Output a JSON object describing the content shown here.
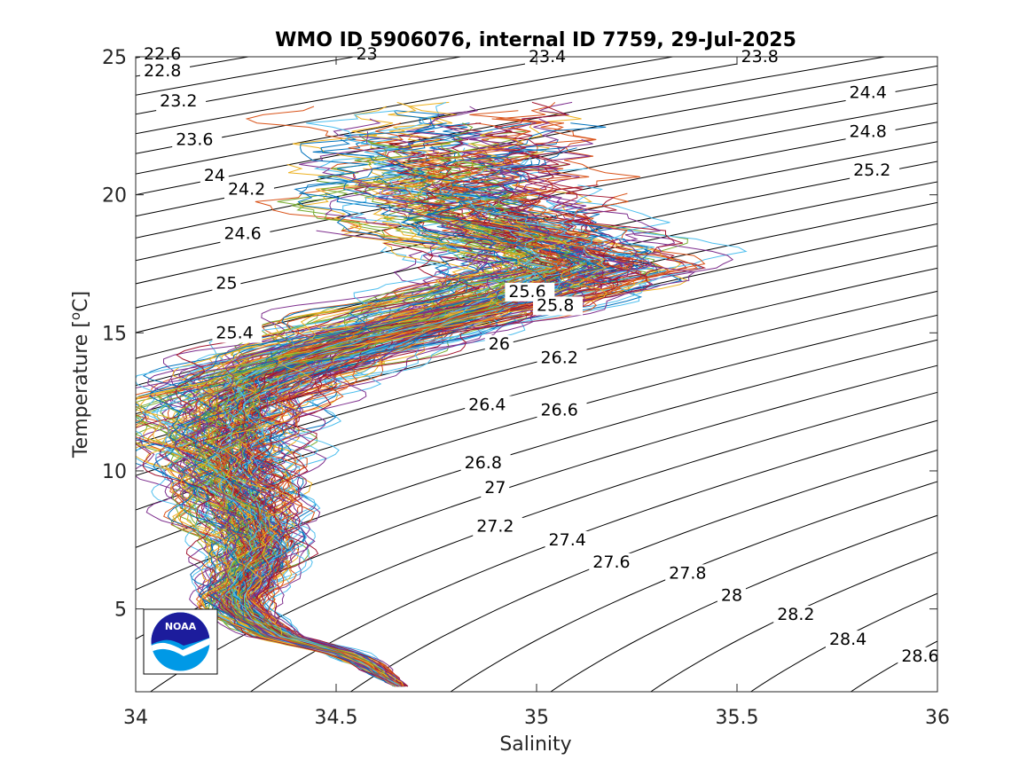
{
  "chart_data": {
    "type": "line",
    "title": "WMO ID 5906076, internal ID 7759, 29-Jul-2025",
    "xlabel": "Salinity",
    "ylabel": "Temperature [",
    "ylabel_unit": "o",
    "ylabel_suffix": "C]",
    "xlim": [
      34,
      36
    ],
    "ylim": [
      2,
      25
    ],
    "xticks": [
      34,
      34.5,
      35,
      35.5,
      36
    ],
    "xtick_labels": [
      "34",
      "34.5",
      "35",
      "35.5",
      "36"
    ],
    "yticks": [
      5,
      10,
      15,
      20,
      25
    ],
    "ytick_labels": [
      "5",
      "10",
      "15",
      "20",
      "25"
    ],
    "grid": false,
    "legend": "none",
    "logo": "noaa-logo",
    "series_colors": [
      "#0072BD",
      "#D95319",
      "#EDB120",
      "#7E2F8E",
      "#77AC30",
      "#4DBEEE",
      "#A2142F"
    ],
    "isopycnals": [
      {
        "label": "22.6",
        "s": 34.02,
        "t": 24.9
      },
      {
        "label": "22.8",
        "s": 34.02,
        "t": 24.3
      },
      {
        "label": "23",
        "s": 34.55,
        "t": 24.9
      },
      {
        "label": "23.2",
        "s": 34.06,
        "t": 23.2
      },
      {
        "label": "23.4",
        "s": 34.98,
        "t": 24.8
      },
      {
        "label": "23.6",
        "s": 34.1,
        "t": 21.8
      },
      {
        "label": "23.8",
        "s": 35.51,
        "t": 24.8
      },
      {
        "label": "24",
        "s": 34.17,
        "t": 20.5
      },
      {
        "label": "24.2",
        "s": 34.23,
        "t": 20.0
      },
      {
        "label": "24.4",
        "s": 35.78,
        "t": 23.5
      },
      {
        "label": "24.6",
        "s": 34.22,
        "t": 18.4
      },
      {
        "label": "24.8",
        "s": 35.78,
        "t": 22.1
      },
      {
        "label": "25",
        "s": 34.2,
        "t": 16.6
      },
      {
        "label": "25.2",
        "s": 35.79,
        "t": 20.7
      },
      {
        "label": "25.4",
        "s": 34.2,
        "t": 14.8
      },
      {
        "label": "25.6",
        "s": 34.93,
        "t": 16.3
      },
      {
        "label": "25.8",
        "s": 35.0,
        "t": 15.8
      },
      {
        "label": "26",
        "s": 34.88,
        "t": 14.4
      },
      {
        "label": "26.2",
        "s": 35.01,
        "t": 13.9
      },
      {
        "label": "26.4",
        "s": 34.83,
        "t": 12.2
      },
      {
        "label": "26.6",
        "s": 35.01,
        "t": 12.0
      },
      {
        "label": "26.8",
        "s": 34.82,
        "t": 10.1
      },
      {
        "label": "27",
        "s": 34.87,
        "t": 9.2
      },
      {
        "label": "27.2",
        "s": 34.85,
        "t": 7.8
      },
      {
        "label": "27.4",
        "s": 35.03,
        "t": 7.3
      },
      {
        "label": "27.6",
        "s": 35.14,
        "t": 6.5
      },
      {
        "label": "27.8",
        "s": 35.33,
        "t": 6.1
      },
      {
        "label": "28",
        "s": 35.46,
        "t": 5.3
      },
      {
        "label": "28.2",
        "s": 35.6,
        "t": 4.6
      },
      {
        "label": "28.4",
        "s": 35.73,
        "t": 3.7
      },
      {
        "label": "28.6",
        "s": 35.91,
        "t": 3.1
      }
    ],
    "mean_profile": [
      {
        "t": 2.2,
        "s": 34.66
      },
      {
        "t": 2.6,
        "s": 34.62
      },
      {
        "t": 3.0,
        "s": 34.58
      },
      {
        "t": 3.4,
        "s": 34.52
      },
      {
        "t": 3.7,
        "s": 34.44
      },
      {
        "t": 4.0,
        "s": 34.36
      },
      {
        "t": 4.5,
        "s": 34.3
      },
      {
        "t": 5.0,
        "s": 34.26
      },
      {
        "t": 5.5,
        "s": 34.25
      },
      {
        "t": 6.0,
        "s": 34.27
      },
      {
        "t": 6.6,
        "s": 34.29
      },
      {
        "t": 7.2,
        "s": 34.3
      },
      {
        "t": 7.8,
        "s": 34.29
      },
      {
        "t": 8.5,
        "s": 34.27
      },
      {
        "t": 9.3,
        "s": 34.25
      },
      {
        "t": 10.2,
        "s": 34.23
      },
      {
        "t": 11.0,
        "s": 34.22
      },
      {
        "t": 11.8,
        "s": 34.23
      },
      {
        "t": 12.6,
        "s": 34.25
      },
      {
        "t": 13.4,
        "s": 34.32
      },
      {
        "t": 14.2,
        "s": 34.45
      },
      {
        "t": 15.0,
        "s": 34.62
      },
      {
        "t": 15.8,
        "s": 34.8
      },
      {
        "t": 16.6,
        "s": 34.98
      },
      {
        "t": 17.4,
        "s": 35.08
      },
      {
        "t": 18.2,
        "s": 35.0
      },
      {
        "t": 19.2,
        "s": 34.85
      },
      {
        "t": 20.2,
        "s": 34.78
      },
      {
        "t": 21.4,
        "s": 34.8
      },
      {
        "t": 22.6,
        "s": 34.85
      }
    ]
  }
}
